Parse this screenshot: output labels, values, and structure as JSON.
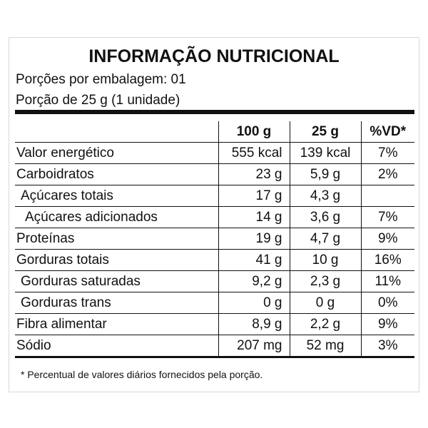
{
  "header": {
    "title": "INFORMAÇÃO NUTRICIONAL",
    "servings_per_package": "Porções por embalagem: 01",
    "serving_size": "Porção de 25 g (1 unidade)"
  },
  "table": {
    "columns": [
      "100 g",
      "25 g",
      "%VD*"
    ],
    "rows": [
      [
        "Valor energético",
        "555 kcal",
        "139 kcal",
        "7%"
      ],
      [
        "Carboidratos",
        "23 g",
        "5,9 g",
        "2%"
      ],
      [
        "Açúcares totais",
        "17 g",
        "4,3 g"
      ],
      [
        "Açúcares adicionados",
        "14 g",
        "3,6 g",
        "7%"
      ],
      [
        "Proteínas",
        "19 g",
        "4,7 g",
        "9%"
      ],
      [
        "Gorduras totais",
        "41 g",
        "10 g",
        "16%"
      ],
      [
        "Gorduras saturadas",
        "9,2 g",
        "2,3 g",
        "11%"
      ],
      [
        "Gorduras trans",
        "0 g",
        "0 g",
        "0%"
      ],
      [
        "Fibra alimentar",
        "8,9 g",
        "2,2 g",
        "9%"
      ],
      [
        "Sódio",
        "207 mg",
        "52 mg",
        "3%"
      ]
    ]
  },
  "footnote": "* Percentual de valores diários fornecidos pela porção."
}
